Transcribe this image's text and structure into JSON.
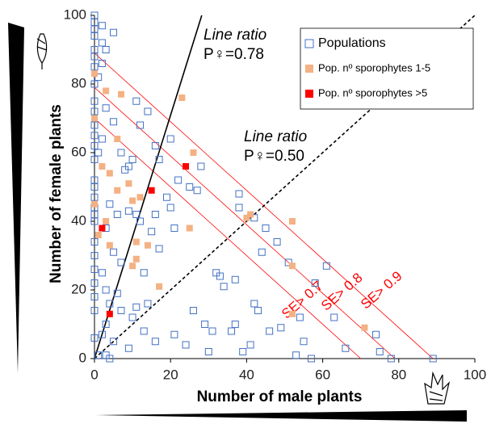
{
  "chart_data": {
    "type": "scatter",
    "x_label": "Number of male plants",
    "y_label": "Number of female plants",
    "xlim": [
      0,
      100
    ],
    "ylim": [
      0,
      100
    ],
    "xticks": [
      0,
      20,
      40,
      60,
      80,
      100
    ],
    "yticks": [
      0,
      20,
      40,
      60,
      80,
      100
    ],
    "legend_position": "upper right",
    "series": [
      {
        "name": "Populations",
        "color": "#4472c4",
        "marker": "hollow-square",
        "x": [
          0,
          0,
          0,
          0,
          0,
          0,
          0,
          0,
          0,
          0,
          0,
          0,
          0,
          0,
          0,
          0,
          0,
          0,
          0,
          0,
          0,
          0,
          0,
          0,
          0,
          0,
          0,
          2,
          5,
          2,
          3,
          2,
          1,
          3,
          5,
          2,
          1,
          7,
          8,
          9,
          10,
          4,
          6,
          3,
          5,
          7,
          2,
          3,
          6,
          4,
          3,
          2,
          5,
          3,
          1,
          4,
          11,
          14,
          12,
          16,
          17,
          20,
          22,
          25,
          27,
          28,
          20,
          19,
          16,
          21,
          9,
          11,
          12,
          15,
          17,
          13,
          7,
          10,
          11,
          14,
          9,
          16,
          21,
          24,
          26,
          30,
          29,
          31,
          33,
          34,
          36,
          37,
          39,
          38,
          38,
          42,
          44,
          41,
          43,
          46,
          48,
          49,
          51,
          54,
          55,
          57,
          58,
          61,
          63,
          66,
          74,
          75,
          78,
          89,
          53,
          37,
          13,
          45,
          32,
          42
        ],
        "values": [
          100,
          98,
          96,
          94,
          90,
          88,
          85,
          80,
          75,
          72,
          68,
          65,
          62,
          58,
          52,
          50,
          47,
          44,
          42,
          40,
          34,
          30,
          26,
          22,
          18,
          14,
          6,
          97,
          95,
          92,
          90,
          86,
          82,
          73,
          69,
          64,
          60,
          60,
          55,
          56,
          58,
          45,
          42,
          38,
          31,
          28,
          25,
          20,
          19,
          16,
          10,
          7,
          5,
          1,
          1,
          0,
          75,
          72,
          68,
          62,
          58,
          64,
          52,
          50,
          49,
          56,
          44,
          47,
          42,
          38,
          43,
          42,
          40,
          37,
          32,
          25,
          14,
          12,
          15,
          16,
          3,
          5,
          7,
          4,
          14,
          2,
          10,
          8,
          24,
          21,
          8,
          23,
          2,
          44,
          48,
          41,
          31,
          4,
          14,
          8,
          34,
          9,
          28,
          12,
          5,
          0,
          22,
          27,
          12,
          3,
          7,
          2,
          0,
          0,
          1,
          10,
          8,
          38,
          25,
          16
        ]
      },
      {
        "name": "Pop.  nº sporophytes 1-5",
        "color": "#f4b183",
        "marker": "filled-square",
        "x": [
          0,
          0,
          0,
          1,
          3,
          7,
          2,
          4,
          6,
          9,
          6,
          3,
          4,
          11,
          14,
          11,
          10,
          12,
          17,
          23,
          26,
          25,
          40,
          41,
          52,
          52,
          52,
          71,
          10
        ],
        "values": [
          83,
          70,
          45,
          36,
          78,
          77,
          56,
          54,
          64,
          51,
          49,
          40,
          33,
          34,
          33,
          29,
          46,
          47,
          21,
          76,
          60,
          38,
          41,
          42,
          40,
          27,
          13,
          9,
          27
        ]
      },
      {
        "name": "Pop. nº sporophytes >5",
        "color": "#ff0000",
        "marker": "filled-square",
        "x": [
          4,
          2,
          15,
          24
        ],
        "values": [
          13,
          38,
          49,
          56
        ]
      }
    ],
    "ratio_lines": [
      {
        "label": "Line ratio",
        "ratio_label": "P♀=0.78",
        "ratio": 0.78,
        "style": "solid",
        "color": "#000000"
      },
      {
        "label": "Line ratio",
        "ratio_label": "P♀=0.50",
        "ratio": 0.5,
        "style": "dashed",
        "color": "#000000"
      }
    ],
    "se_lines": [
      {
        "label": "SE> 0.7",
        "sum": 70,
        "color": "#ff0000"
      },
      {
        "label": "SE> 0.8",
        "sum": 79,
        "color": "#ff0000"
      },
      {
        "label": "SE> 0.9",
        "sum": 89,
        "color": "#ff0000"
      }
    ]
  }
}
